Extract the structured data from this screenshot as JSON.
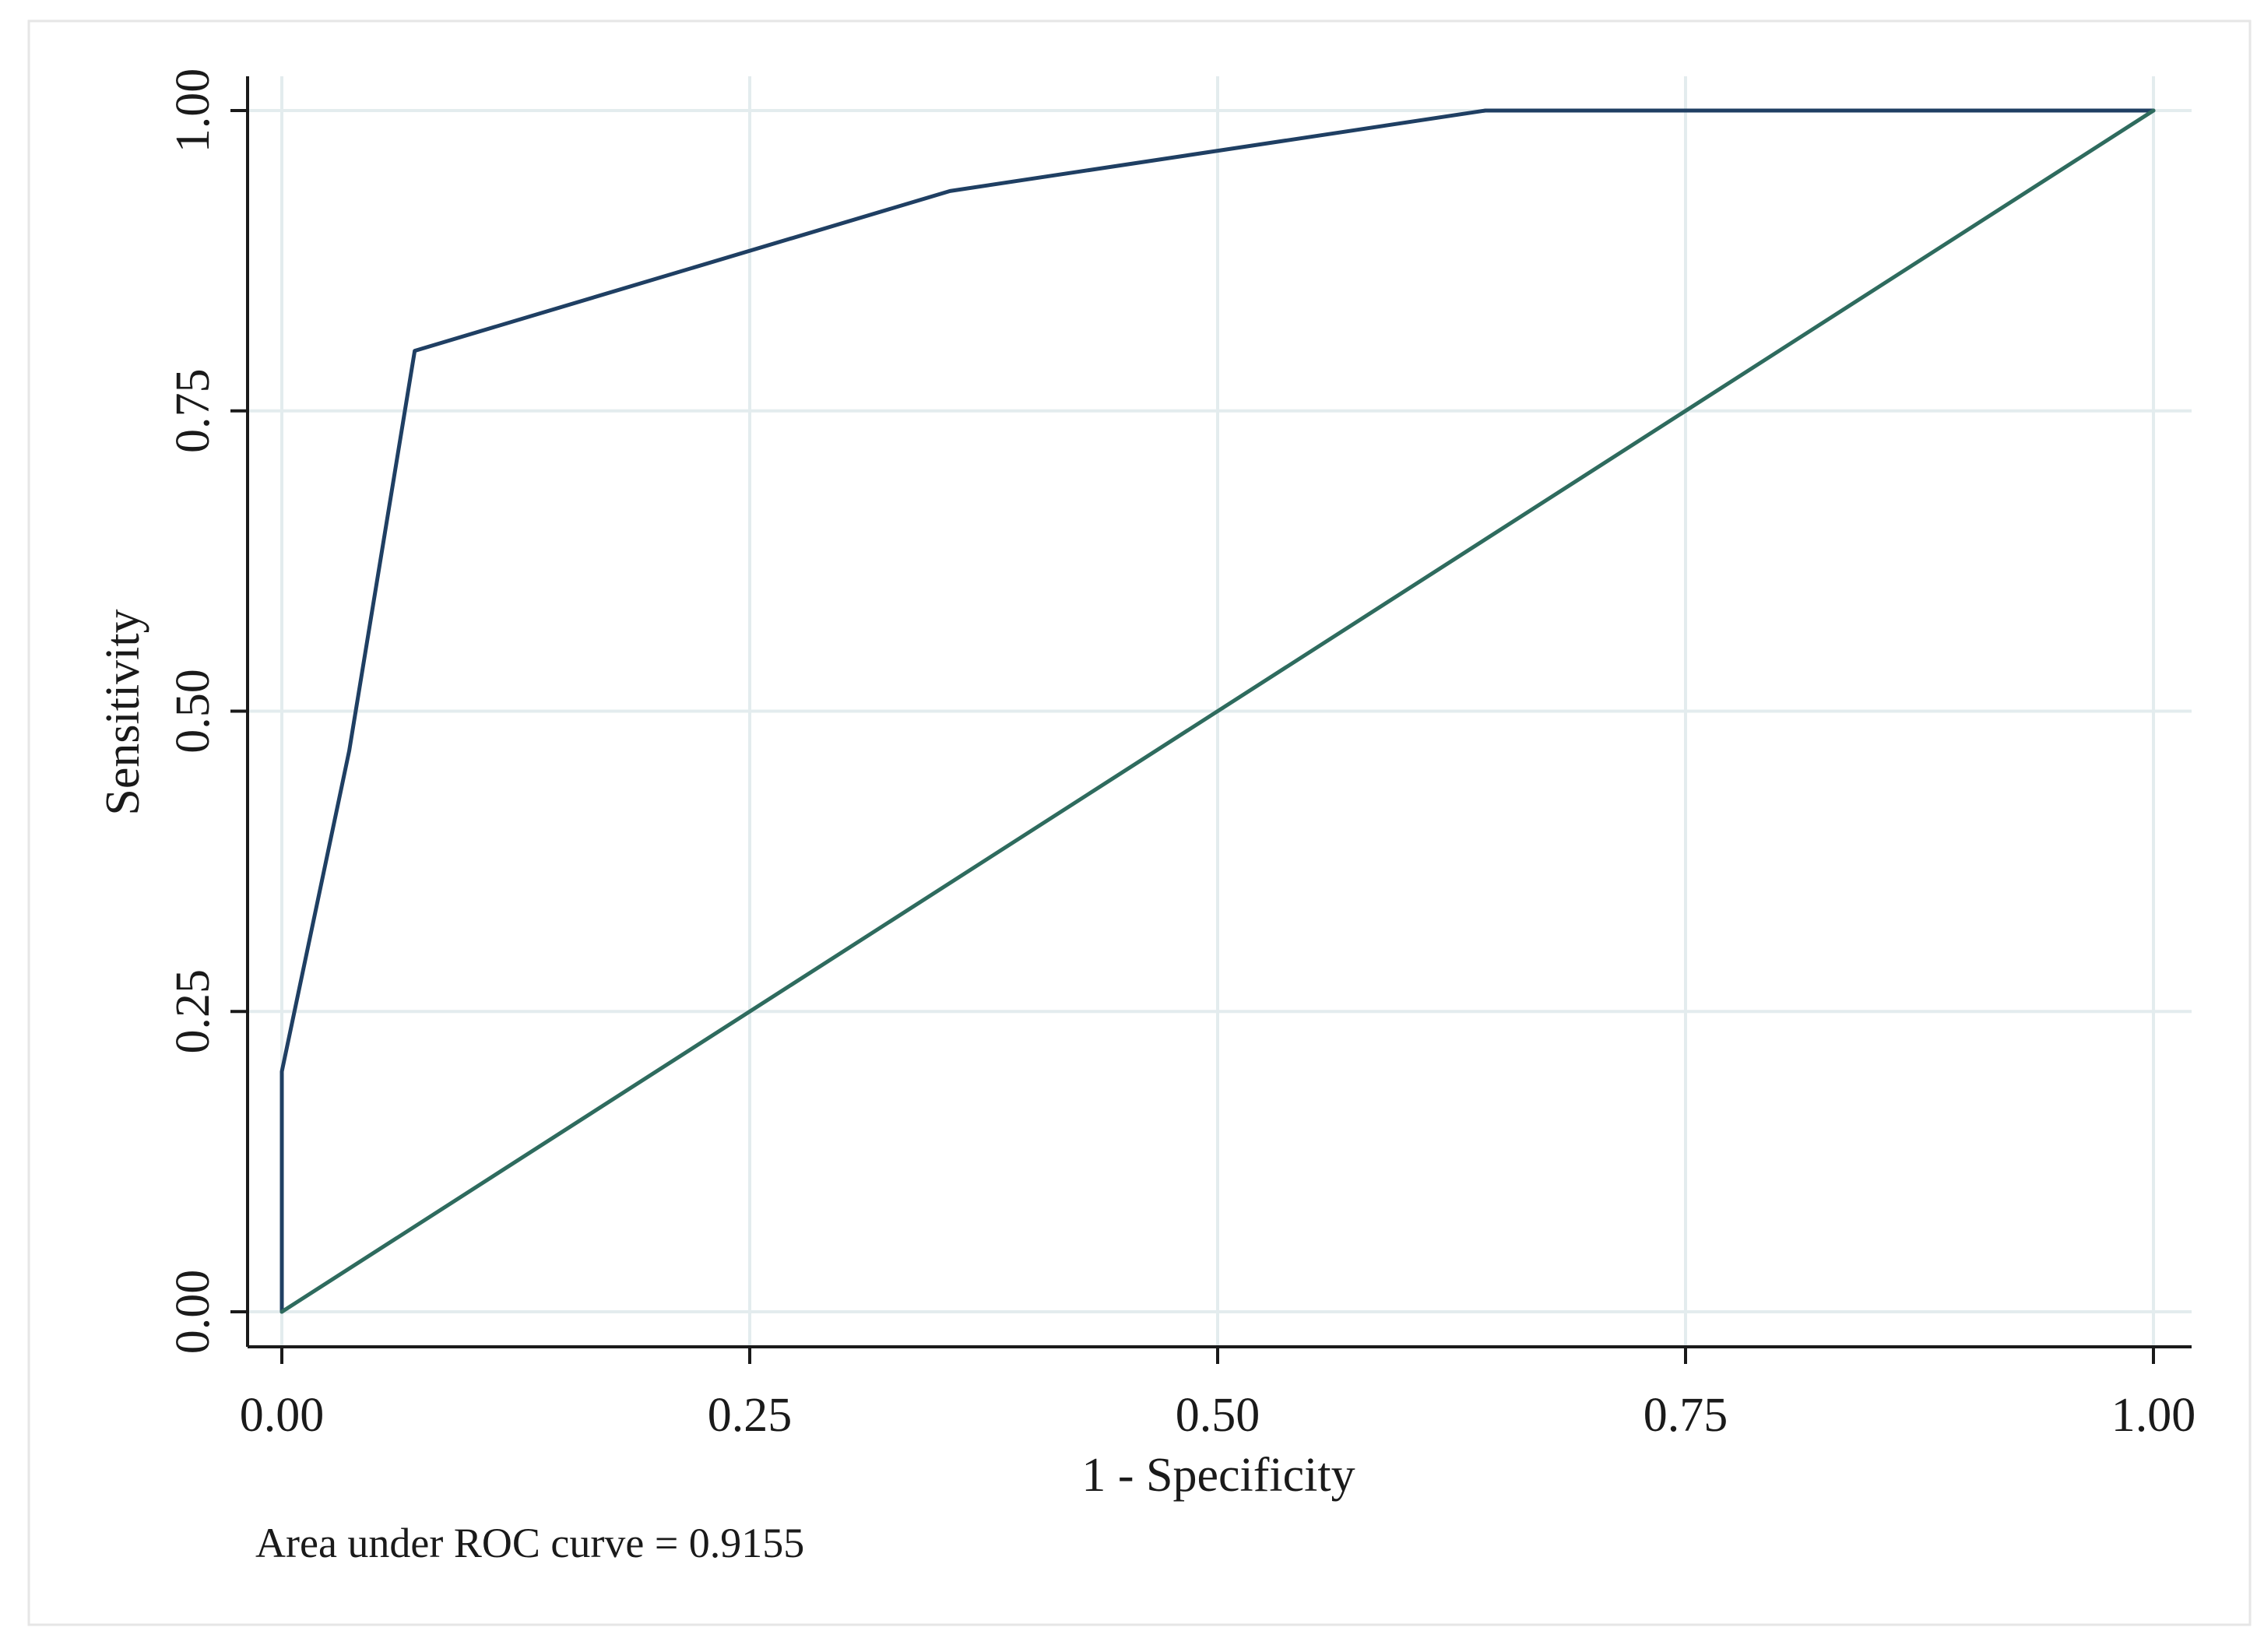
{
  "chart_data": {
    "type": "line",
    "xlabel": "1 - Specificity",
    "ylabel": "Sensitivity",
    "xlim": [
      0,
      1
    ],
    "ylim": [
      0,
      1
    ],
    "x_ticks": [
      "0.00",
      "0.25",
      "0.50",
      "0.75",
      "1.00"
    ],
    "y_ticks": [
      "0.00",
      "0.25",
      "0.50",
      "0.75",
      "1.00"
    ],
    "grid": true,
    "note": "Area under ROC curve = 0.9155",
    "series": [
      {
        "kind": "roc-curve",
        "color": "#1f3f63",
        "points": [
          [
            0.0,
            0.0
          ],
          [
            0.0,
            0.2
          ],
          [
            0.036,
            0.467
          ],
          [
            0.071,
            0.8
          ],
          [
            0.357,
            0.933
          ],
          [
            0.643,
            1.0
          ],
          [
            1.0,
            1.0
          ]
        ]
      },
      {
        "kind": "reference-line",
        "color": "#2e6b5e",
        "points": [
          [
            0.0,
            0.0
          ],
          [
            1.0,
            1.0
          ]
        ]
      }
    ],
    "colors": {
      "grid": "#e3ecee",
      "axis": "#1a1a1a",
      "border": "#e6e6e6"
    }
  }
}
